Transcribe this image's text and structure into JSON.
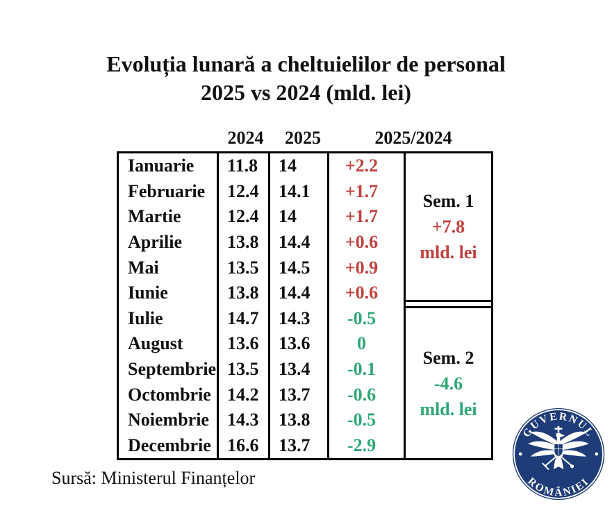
{
  "title": {
    "line1": "Evoluția lunară a cheltuielilor de personal",
    "line2": "2025 vs 2024 (mld. lei)"
  },
  "table": {
    "headers": {
      "col2024": "2024",
      "col2025": "2025",
      "ratio": "2025/2024"
    },
    "rows": [
      {
        "month": "Ianuarie",
        "v2024": "11.8",
        "v2025": "14",
        "diff": "+2.2"
      },
      {
        "month": "Februarie",
        "v2024": "12.4",
        "v2025": "14.1",
        "diff": "+1.7"
      },
      {
        "month": "Martie",
        "v2024": "12.4",
        "v2025": "14",
        "diff": "+1.7"
      },
      {
        "month": "Aprilie",
        "v2024": "13.8",
        "v2025": "14.4",
        "diff": "+0.6"
      },
      {
        "month": "Mai",
        "v2024": "13.5",
        "v2025": "14.5",
        "diff": "+0.9"
      },
      {
        "month": "Iunie",
        "v2024": "13.8",
        "v2025": "14.4",
        "diff": "+0.6"
      },
      {
        "month": "Iulie",
        "v2024": "14.7",
        "v2025": "14.3",
        "diff": "-0.5"
      },
      {
        "month": "August",
        "v2024": "13.6",
        "v2025": "13.6",
        "diff": "0"
      },
      {
        "month": "Septembrie",
        "v2024": "13.5",
        "v2025": "13.4",
        "diff": "-0.1"
      },
      {
        "month": "Octombrie",
        "v2024": "14.2",
        "v2025": "13.7",
        "diff": "-0.6"
      },
      {
        "month": "Noiembrie",
        "v2024": "14.3",
        "v2025": "13.8",
        "diff": "-0.5"
      },
      {
        "month": "Decembrie",
        "v2024": "16.6",
        "v2025": "13.7",
        "diff": "-2.9"
      }
    ],
    "semesters": [
      {
        "label": "Sem. 1",
        "value": "+7.8",
        "unit": "mld. lei",
        "sign": "positive"
      },
      {
        "label": "Sem. 2",
        "value": "-4.6",
        "unit": "mld. lei",
        "sign": "negative"
      }
    ]
  },
  "source": "Sursă: Ministerul Finanțelor",
  "logo": {
    "top_text": "GUVERNUL",
    "bottom_text": "ROMÂNIEI"
  },
  "colors": {
    "increase_red": "#c0413d",
    "decrease_green": "#2fa876",
    "logo_blue": "#1e3c78",
    "text_black": "#111111"
  },
  "chart_data": {
    "type": "table",
    "title": "Evoluția lunară a cheltuielilor de personal 2025 vs 2024 (mld. lei)",
    "categories": [
      "Ianuarie",
      "Februarie",
      "Martie",
      "Aprilie",
      "Mai",
      "Iunie",
      "Iulie",
      "August",
      "Septembrie",
      "Octombrie",
      "Noiembrie",
      "Decembrie"
    ],
    "series": [
      {
        "name": "2024",
        "values": [
          11.8,
          12.4,
          12.4,
          13.8,
          13.5,
          13.8,
          14.7,
          13.6,
          13.5,
          14.2,
          14.3,
          16.6
        ]
      },
      {
        "name": "2025",
        "values": [
          14,
          14.1,
          14,
          14.4,
          14.5,
          14.4,
          14.3,
          13.6,
          13.4,
          13.7,
          13.8,
          13.7
        ]
      },
      {
        "name": "2025/2024",
        "values": [
          2.2,
          1.7,
          1.7,
          0.6,
          0.9,
          0.6,
          -0.5,
          0,
          -0.1,
          -0.6,
          -0.5,
          -2.9
        ]
      }
    ],
    "summary": [
      {
        "name": "Sem. 1",
        "value": 7.8,
        "unit": "mld. lei"
      },
      {
        "name": "Sem. 2",
        "value": -4.6,
        "unit": "mld. lei"
      }
    ],
    "unit": "mld. lei",
    "color_coding": {
      "increase": "red",
      "decrease_or_zero": "green"
    }
  }
}
